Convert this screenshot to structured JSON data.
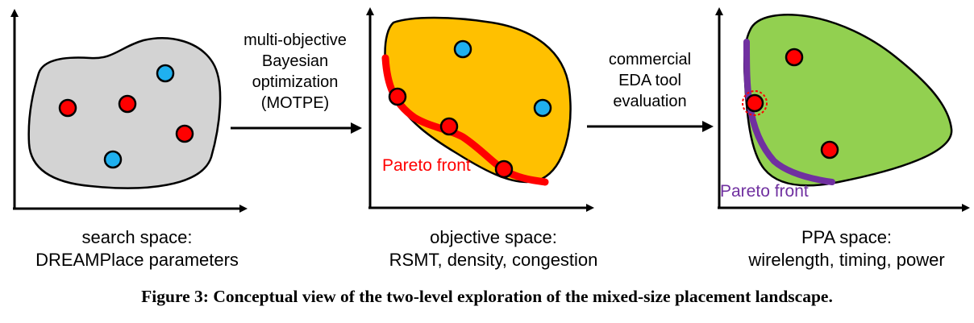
{
  "panels": {
    "search": {
      "label_line1": "search space:",
      "label_line2": "DREAMPlace parameters",
      "fill_color": "#d3d3d3"
    },
    "objective": {
      "label_line1": "objective space:",
      "label_line2": "RSMT, density, congestion",
      "fill_color": "#ffc000",
      "front_label": "Pareto front",
      "front_color": "#ff0000"
    },
    "ppa": {
      "label_line1": "PPA space:",
      "label_line2": "wirelength, timing, power",
      "fill_color": "#92d050",
      "front_label": "Pareto front",
      "front_color": "#7030a0"
    }
  },
  "arrows": {
    "first": [
      "multi-objective",
      "Bayesian",
      "optimization",
      "(MOTPE)"
    ],
    "second": [
      "commercial",
      "EDA tool",
      "evaluation"
    ]
  },
  "point_colors": {
    "red": "#ff0000",
    "blue": "#1fb0ef"
  },
  "caption": "Figure 3: Conceptual view of the two-level exploration of the mixed-size placement landscape."
}
